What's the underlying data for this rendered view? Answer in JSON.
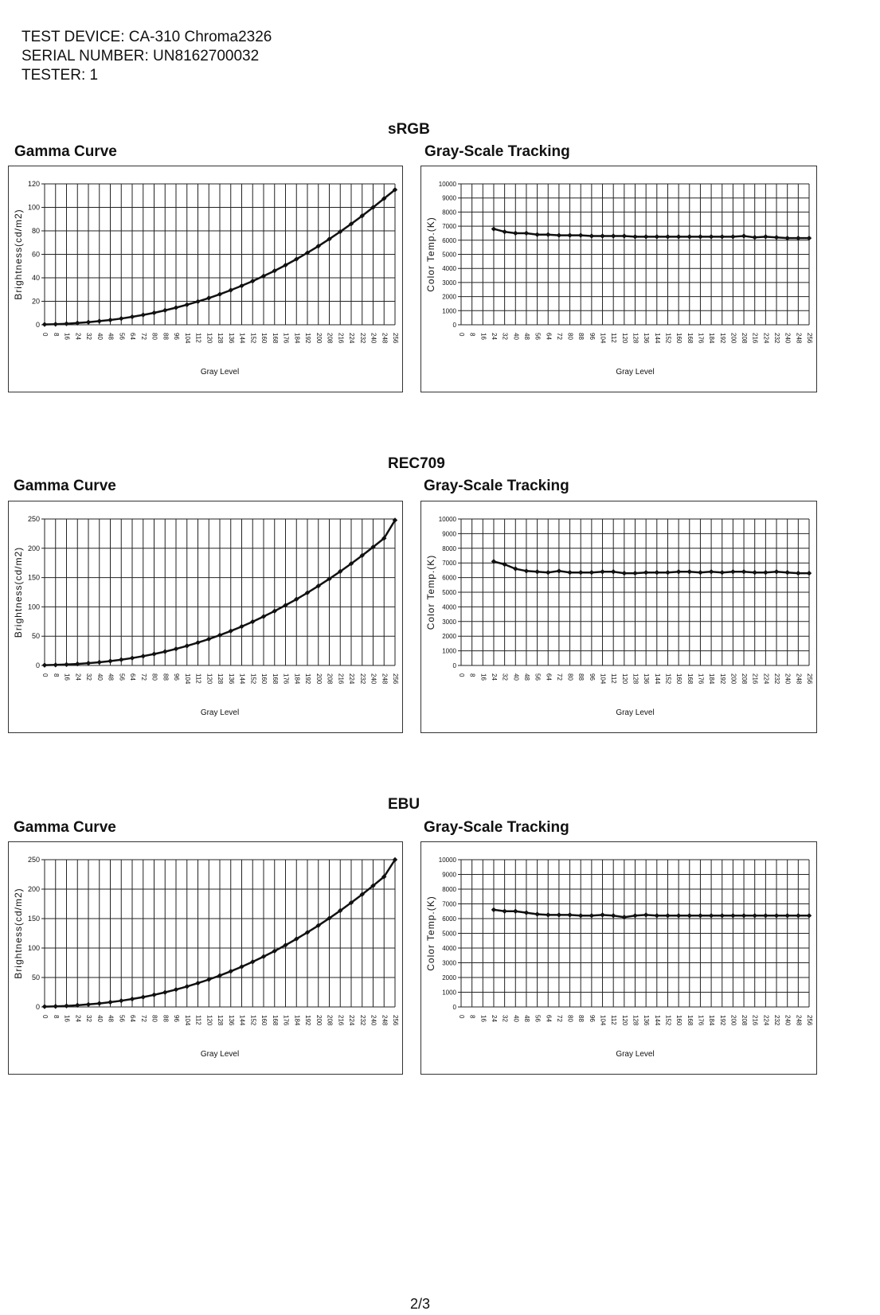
{
  "header": {
    "device": "TEST DEVICE: CA-310  Chroma2326",
    "serial": "SERIAL NUMBER: UN8162700032",
    "tester": "TESTER: 1"
  },
  "sections": [
    {
      "title": "sRGB",
      "gamma_title": "Gamma Curve",
      "gray_title": "Gray-Scale Tracking"
    },
    {
      "title": "REC709",
      "gamma_title": "Gamma Curve",
      "gray_title": "Gray-Scale Tracking"
    },
    {
      "title": "EBU",
      "gamma_title": "Gamma Curve",
      "gray_title": "Gray-Scale Tracking"
    }
  ],
  "page_number": "2/3",
  "chart_data": [
    {
      "type": "line",
      "id": "srgb-gamma",
      "title": "Gamma Curve",
      "xlabel": "Gray Level",
      "ylabel": "Brightness(cd/m2)",
      "categories": [
        "0",
        "8",
        "16",
        "24",
        "32",
        "40",
        "48",
        "56",
        "64",
        "72",
        "80",
        "88",
        "96",
        "104",
        "112",
        "120",
        "128",
        "136",
        "144",
        "152",
        "160",
        "168",
        "176",
        "184",
        "192",
        "200",
        "208",
        "216",
        "224",
        "232",
        "240",
        "248",
        "256"
      ],
      "ylim": [
        0,
        120
      ],
      "yticks": [
        0,
        20,
        40,
        60,
        80,
        100,
        120
      ],
      "values": [
        0.3,
        0.5,
        0.9,
        1.5,
        2.2,
        3.1,
        4.1,
        5.3,
        6.8,
        8.4,
        10.2,
        12.3,
        14.6,
        17.1,
        19.8,
        22.8,
        26.0,
        29.5,
        33.2,
        37.2,
        41.5,
        46.0,
        50.8,
        55.9,
        61.3,
        67.0,
        73.0,
        79.3,
        85.9,
        92.8,
        100.0,
        107.5,
        115.0
      ]
    },
    {
      "type": "line",
      "id": "srgb-gray",
      "title": "Gray-Scale Tracking",
      "xlabel": "Gray Level",
      "ylabel": "Color Temp.(K)",
      "categories": [
        "0",
        "8",
        "16",
        "24",
        "32",
        "40",
        "48",
        "56",
        "64",
        "72",
        "80",
        "88",
        "96",
        "104",
        "112",
        "120",
        "128",
        "136",
        "144",
        "152",
        "160",
        "168",
        "176",
        "184",
        "192",
        "200",
        "208",
        "216",
        "224",
        "232",
        "240",
        "248",
        "256"
      ],
      "ylim": [
        0,
        10000
      ],
      "yticks": [
        0,
        1000,
        2000,
        3000,
        4000,
        5000,
        6000,
        7000,
        8000,
        9000,
        10000
      ],
      "values": [
        null,
        null,
        null,
        6800,
        6600,
        6500,
        6500,
        6400,
        6400,
        6350,
        6350,
        6350,
        6300,
        6300,
        6300,
        6300,
        6250,
        6250,
        6250,
        6250,
        6250,
        6250,
        6250,
        6250,
        6250,
        6250,
        6300,
        6200,
        6250,
        6200,
        6150,
        6150,
        6150
      ]
    },
    {
      "type": "line",
      "id": "rec709-gamma",
      "title": "Gamma Curve",
      "xlabel": "Gray Level",
      "ylabel": "Brightness(cd/m2)",
      "categories": [
        "0",
        "8",
        "16",
        "24",
        "32",
        "40",
        "48",
        "56",
        "64",
        "72",
        "80",
        "88",
        "96",
        "104",
        "112",
        "120",
        "128",
        "136",
        "144",
        "152",
        "160",
        "168",
        "176",
        "184",
        "192",
        "200",
        "208",
        "216",
        "224",
        "232",
        "240",
        "248",
        "256"
      ],
      "ylim": [
        0,
        250
      ],
      "yticks": [
        0,
        50,
        100,
        150,
        200,
        250
      ],
      "values": [
        0.5,
        0.9,
        1.6,
        2.6,
        3.9,
        5.5,
        7.5,
        9.9,
        12.7,
        15.9,
        19.6,
        23.7,
        28.3,
        33.4,
        39.0,
        45.1,
        51.7,
        58.8,
        66.5,
        74.7,
        83.5,
        92.8,
        102.7,
        113.1,
        124.1,
        135.7,
        147.8,
        160.5,
        173.8,
        187.7,
        202.1,
        217.1,
        248.0
      ]
    },
    {
      "type": "line",
      "id": "rec709-gray",
      "title": "Gray-Scale Tracking",
      "xlabel": "Gray Level",
      "ylabel": "Color Temp.(K)",
      "categories": [
        "0",
        "8",
        "16",
        "24",
        "32",
        "40",
        "48",
        "56",
        "64",
        "72",
        "80",
        "88",
        "96",
        "104",
        "112",
        "120",
        "128",
        "136",
        "144",
        "152",
        "160",
        "168",
        "176",
        "184",
        "192",
        "200",
        "208",
        "216",
        "224",
        "232",
        "240",
        "248",
        "256"
      ],
      "ylim": [
        0,
        10000
      ],
      "yticks": [
        0,
        1000,
        2000,
        3000,
        4000,
        5000,
        6000,
        7000,
        8000,
        9000,
        10000
      ],
      "values": [
        null,
        null,
        null,
        7100,
        6900,
        6600,
        6450,
        6400,
        6350,
        6450,
        6350,
        6350,
        6350,
        6400,
        6400,
        6300,
        6300,
        6350,
        6350,
        6350,
        6400,
        6400,
        6350,
        6400,
        6350,
        6400,
        6400,
        6350,
        6350,
        6400,
        6350,
        6300,
        6300
      ]
    },
    {
      "type": "line",
      "id": "ebu-gamma",
      "title": "Gamma Curve",
      "xlabel": "Gray Level",
      "ylabel": "Brightness(cd/m2)",
      "categories": [
        "0",
        "8",
        "16",
        "24",
        "32",
        "40",
        "48",
        "56",
        "64",
        "72",
        "80",
        "88",
        "96",
        "104",
        "112",
        "120",
        "128",
        "136",
        "144",
        "152",
        "160",
        "168",
        "176",
        "184",
        "192",
        "200",
        "208",
        "216",
        "224",
        "232",
        "240",
        "248",
        "256"
      ],
      "ylim": [
        0,
        250
      ],
      "yticks": [
        0,
        50,
        100,
        150,
        200,
        250
      ],
      "values": [
        0.6,
        1.0,
        1.8,
        2.9,
        4.3,
        6.0,
        8.1,
        10.6,
        13.5,
        16.8,
        20.6,
        24.8,
        29.5,
        34.7,
        40.4,
        46.6,
        53.3,
        60.5,
        68.3,
        76.6,
        85.5,
        94.9,
        104.9,
        115.5,
        126.6,
        138.3,
        150.6,
        163.5,
        177.0,
        191.1,
        205.8,
        221.1,
        250.0
      ]
    },
    {
      "type": "line",
      "id": "ebu-gray",
      "title": "Gray-Scale Tracking",
      "xlabel": "Gray Level",
      "ylabel": "Color Temp.(K)",
      "categories": [
        "0",
        "8",
        "16",
        "24",
        "32",
        "40",
        "48",
        "56",
        "64",
        "72",
        "80",
        "88",
        "96",
        "104",
        "112",
        "120",
        "128",
        "136",
        "144",
        "152",
        "160",
        "168",
        "176",
        "184",
        "192",
        "200",
        "208",
        "216",
        "224",
        "232",
        "240",
        "248",
        "256"
      ],
      "ylim": [
        0,
        10000
      ],
      "yticks": [
        0,
        1000,
        2000,
        3000,
        4000,
        5000,
        6000,
        7000,
        8000,
        9000,
        10000
      ],
      "values": [
        null,
        null,
        null,
        6600,
        6500,
        6500,
        6400,
        6300,
        6250,
        6250,
        6250,
        6200,
        6200,
        6250,
        6200,
        6100,
        6200,
        6250,
        6200,
        6200,
        6200,
        6200,
        6200,
        6200,
        6200,
        6200,
        6200,
        6200,
        6200,
        6200,
        6200,
        6200,
        6200
      ]
    }
  ]
}
